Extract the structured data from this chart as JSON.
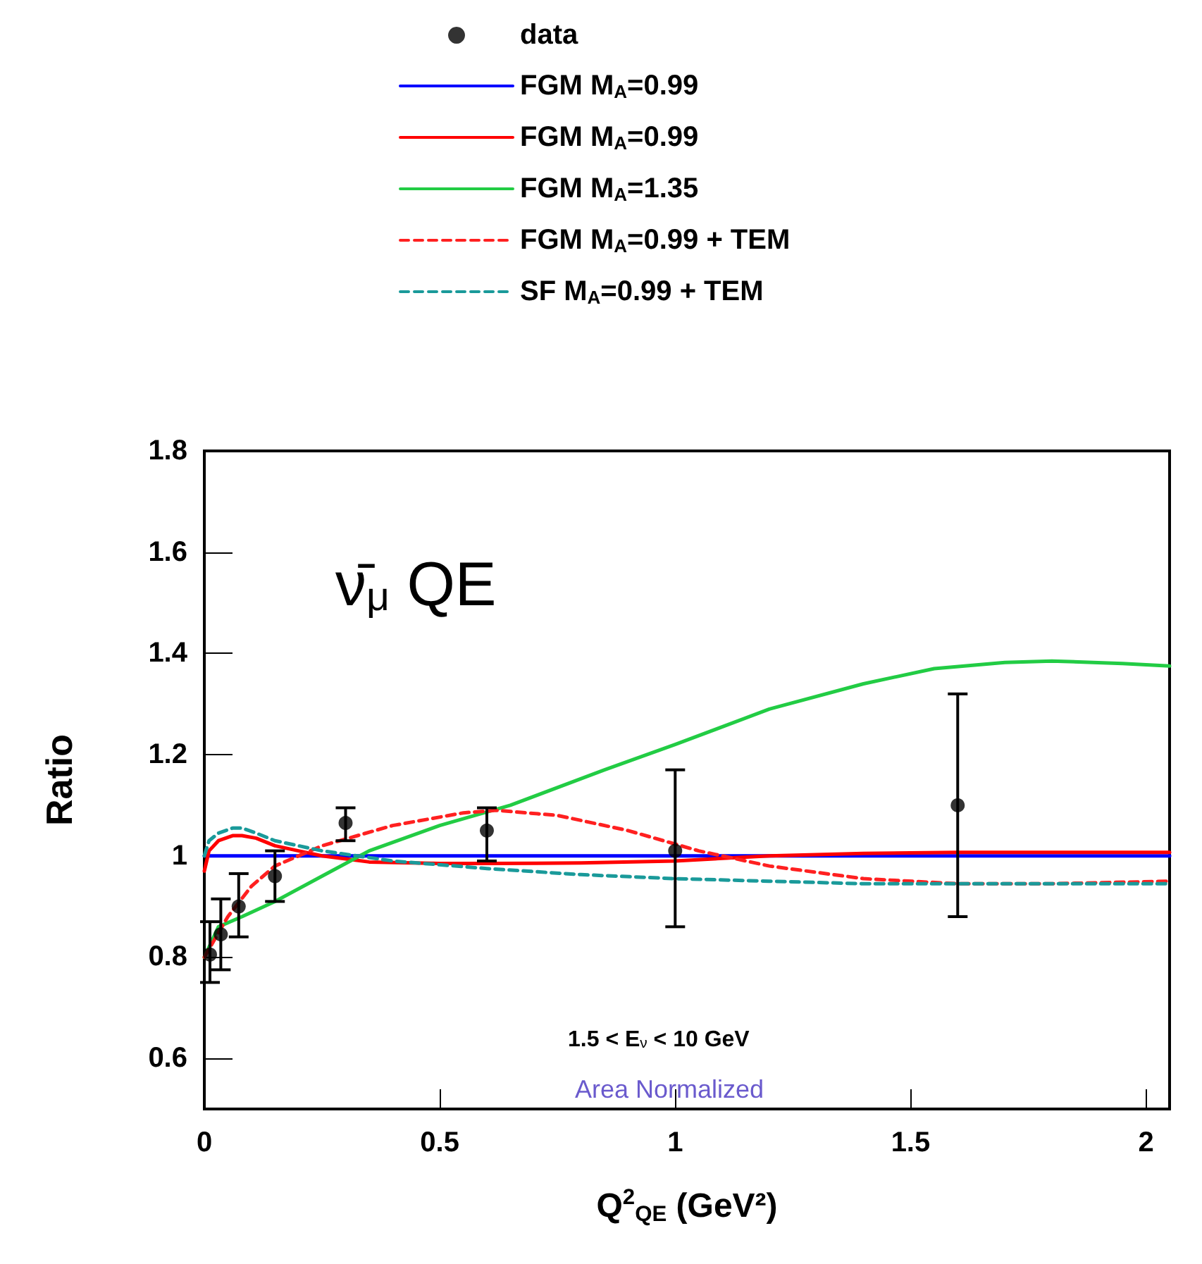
{
  "chart_data": {
    "type": "line",
    "xlabel": "Q$^{2}$$_{QE}$ (GeV²)",
    "ylabel": "Ratio",
    "legend": "top",
    "grid": false,
    "annotations": [
      "ν̄$_{μ}$ QE",
      "1.5 < E$_{ν}$ < 10 GeV",
      "Area Normalized"
    ],
    "xlim": [
      0,
      2.05
    ],
    "xticks": [
      0,
      0.5,
      1,
      1.5,
      2
    ],
    "ylim": [
      0.5,
      1.8
    ],
    "yticks": [
      0.6,
      0.8,
      1,
      1.2,
      1.4,
      1.6,
      1.8
    ],
    "series": [
      {
        "name": "data",
        "type": "scatter",
        "color": "#000000",
        "marker": "circle",
        "x": [
          0.012,
          0.035,
          0.073,
          0.15,
          0.3,
          0.6,
          1.0,
          1.6
        ],
        "values": [
          0.805,
          0.845,
          0.9,
          0.96,
          1.065,
          1.05,
          1.01,
          1.1
        ],
        "errors": [
          [
            0.75,
            0.87
          ],
          [
            0.775,
            0.915
          ],
          [
            0.84,
            0.965
          ],
          [
            0.91,
            1.01
          ],
          [
            1.03,
            1.095
          ],
          [
            0.99,
            1.095
          ],
          [
            0.86,
            1.17
          ],
          [
            0.88,
            1.32
          ]
        ]
      },
      {
        "name": "FGM M$_{A}$=0.99",
        "color": "#0000ff",
        "marker": "none",
        "line_style": "solid",
        "x": [
          0,
          2.05
        ],
        "values": [
          1,
          1
        ]
      },
      {
        "name": "FGM M$_{A}$=0.99",
        "color": "#ff0000",
        "marker": "none",
        "line_style": "solid",
        "x": [
          0,
          0.01,
          0.03,
          0.06,
          0.08,
          0.11,
          0.15,
          0.2,
          0.25,
          0.35,
          0.5,
          0.6,
          0.8,
          1.0,
          1.2,
          1.4,
          1.6,
          1.8,
          2.05
        ],
        "values": [
          0.97,
          1.01,
          1.03,
          1.04,
          1.04,
          1.035,
          1.02,
          1.01,
          1.0,
          0.988,
          0.985,
          0.985,
          0.986,
          0.99,
          1.0,
          1.005,
          1.007,
          1.007,
          1.007
        ]
      },
      {
        "name": "FGM M$_{A}$=1.35",
        "color": "#22cc44",
        "marker": "none",
        "line_style": "solid",
        "x": [
          0,
          0.03,
          0.08,
          0.15,
          0.25,
          0.35,
          0.5,
          0.65,
          0.85,
          1.0,
          1.2,
          1.4,
          1.55,
          1.7,
          1.8,
          1.95,
          2.05
        ],
        "values": [
          0.8,
          0.86,
          0.88,
          0.91,
          0.96,
          1.01,
          1.06,
          1.1,
          1.17,
          1.22,
          1.29,
          1.34,
          1.37,
          1.382,
          1.385,
          1.38,
          1.375
        ]
      },
      {
        "name": "FGM M$_{A}$=0.99 + TEM",
        "color": "#ff2020",
        "marker": "none",
        "line_style": "dashed",
        "x": [
          0,
          0.05,
          0.1,
          0.15,
          0.25,
          0.4,
          0.55,
          0.62,
          0.75,
          0.9,
          1.05,
          1.2,
          1.4,
          1.6,
          1.8,
          2.05
        ],
        "values": [
          0.8,
          0.88,
          0.94,
          0.98,
          1.02,
          1.06,
          1.085,
          1.09,
          1.08,
          1.05,
          1.01,
          0.98,
          0.955,
          0.945,
          0.945,
          0.95
        ]
      },
      {
        "name": "SF M$_{A}$=0.99 + TEM",
        "color": "#1a9a9a",
        "marker": "none",
        "line_style": "dashed",
        "x": [
          0,
          0.01,
          0.03,
          0.06,
          0.08,
          0.11,
          0.15,
          0.25,
          0.4,
          0.6,
          0.8,
          1.0,
          1.2,
          1.4,
          1.7,
          2.05
        ],
        "values": [
          1.0,
          1.03,
          1.045,
          1.055,
          1.055,
          1.045,
          1.03,
          1.01,
          0.99,
          0.975,
          0.963,
          0.955,
          0.95,
          0.945,
          0.945,
          0.945
        ]
      }
    ]
  }
}
